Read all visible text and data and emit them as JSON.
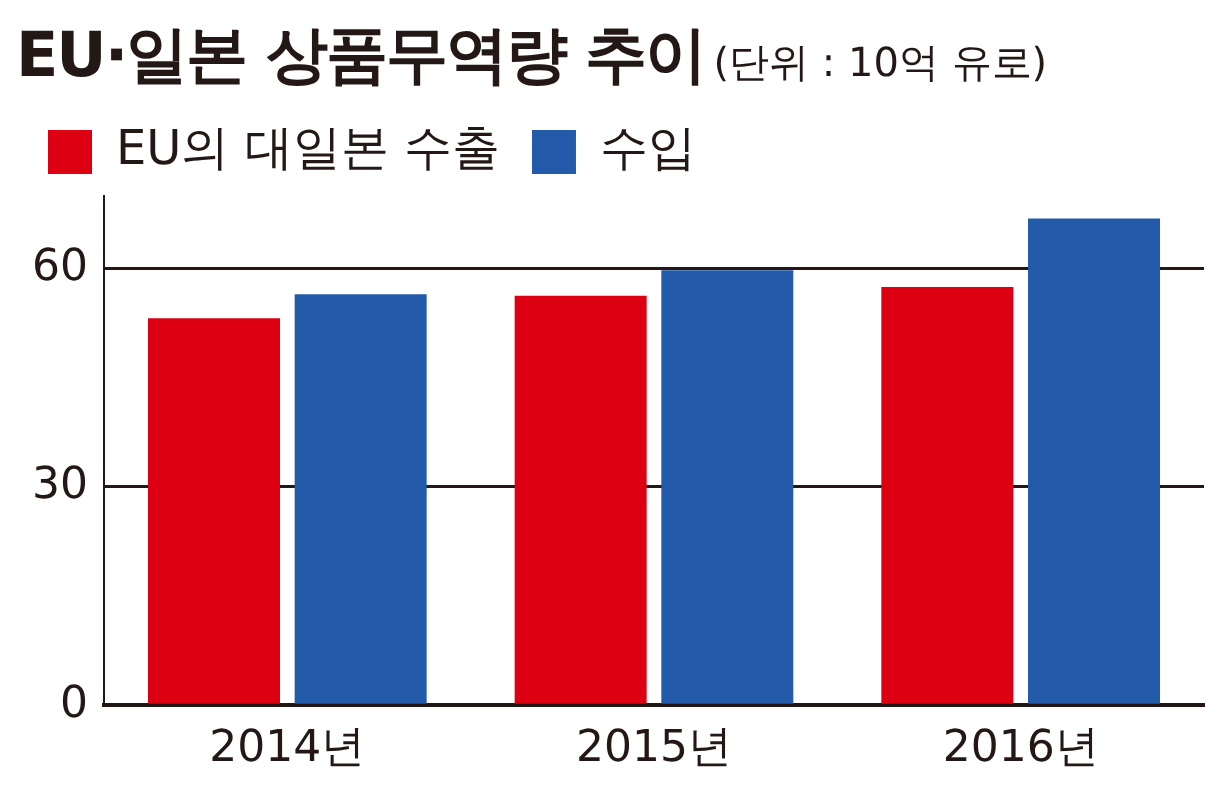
{
  "chart_data": {
    "type": "bar",
    "title": "EU·일본 상품무역량 추이",
    "subtitle": "(단위 : 10억 유로)",
    "categories": [
      "2014년",
      "2015년",
      "2016년"
    ],
    "series": [
      {
        "name": "EU의 대일본 수출",
        "color": "#dc0012",
        "values": [
          53.2,
          56.3,
          57.5
        ]
      },
      {
        "name": "수입",
        "color": "#235aa9",
        "values": [
          56.5,
          59.8,
          66.9
        ]
      }
    ],
    "ylim": [
      0,
      70
    ],
    "yticks": [
      0,
      30,
      60
    ],
    "grid": "y",
    "legend": "top left"
  }
}
